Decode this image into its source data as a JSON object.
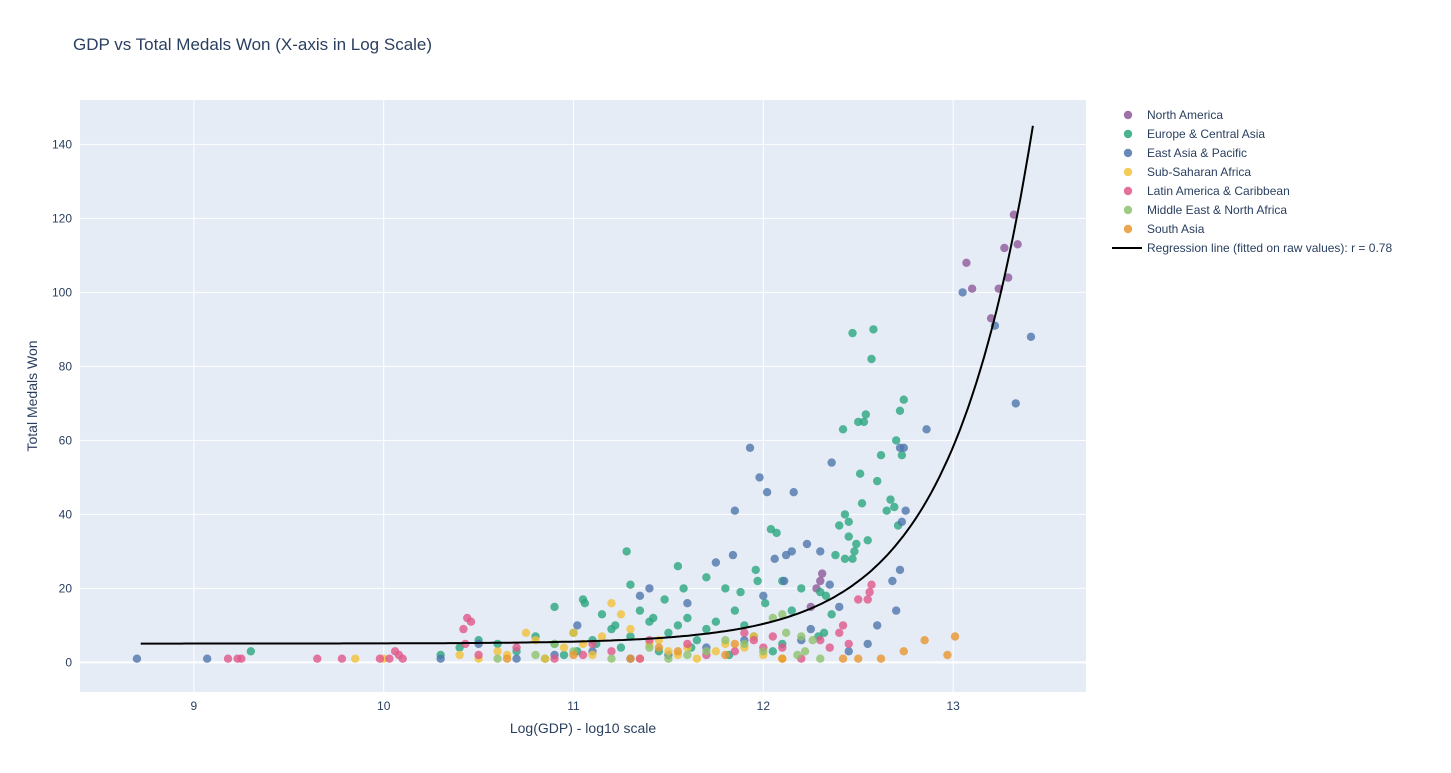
{
  "chart_data": {
    "type": "scatter",
    "title": "GDP vs Total Medals Won (X-axis in Log Scale)",
    "xlabel": "Log(GDP) - log10 scale",
    "ylabel": "Total Medals Won",
    "xlim": [
      8.4,
      13.7
    ],
    "ylim": [
      -8,
      152
    ],
    "x_ticks": [
      9,
      10,
      11,
      12,
      13
    ],
    "y_ticks": [
      0,
      20,
      40,
      60,
      80,
      100,
      120,
      140
    ],
    "grid": true,
    "plot_background": "#e5ecf6",
    "legend_position": "right",
    "series": [
      {
        "name": "North America",
        "color": "#8e5a9b",
        "points": [
          [
            13.07,
            108
          ],
          [
            13.1,
            101
          ],
          [
            13.2,
            93
          ],
          [
            13.24,
            101
          ],
          [
            13.27,
            112
          ],
          [
            13.29,
            104
          ],
          [
            13.32,
            121
          ],
          [
            13.34,
            113
          ],
          [
            12.3,
            22
          ],
          [
            12.31,
            24
          ],
          [
            12.28,
            20
          ],
          [
            12.25,
            15
          ]
        ]
      },
      {
        "name": "Europe & Central Asia",
        "color": "#2aa67e",
        "points": [
          [
            9.3,
            3
          ],
          [
            10.9,
            15
          ],
          [
            11.05,
            17
          ],
          [
            11.06,
            16
          ],
          [
            11.28,
            30
          ],
          [
            11.3,
            21
          ],
          [
            11.48,
            17
          ],
          [
            11.55,
            26
          ],
          [
            11.58,
            20
          ],
          [
            11.7,
            23
          ],
          [
            11.8,
            20
          ],
          [
            11.88,
            19
          ],
          [
            11.96,
            25
          ],
          [
            11.97,
            22
          ],
          [
            12.01,
            16
          ],
          [
            12.04,
            36
          ],
          [
            12.07,
            35
          ],
          [
            12.1,
            22
          ],
          [
            12.3,
            19
          ],
          [
            12.33,
            18
          ],
          [
            12.38,
            29
          ],
          [
            12.4,
            37
          ],
          [
            12.42,
            63
          ],
          [
            12.43,
            40
          ],
          [
            12.45,
            34
          ],
          [
            12.47,
            89
          ],
          [
            12.5,
            65
          ],
          [
            12.51,
            51
          ],
          [
            12.52,
            43
          ],
          [
            12.53,
            65
          ],
          [
            12.54,
            67
          ],
          [
            12.55,
            33
          ],
          [
            12.57,
            82
          ],
          [
            12.58,
            90
          ],
          [
            12.6,
            49
          ],
          [
            12.62,
            56
          ],
          [
            12.65,
            41
          ],
          [
            12.67,
            44
          ],
          [
            12.7,
            60
          ],
          [
            12.72,
            68
          ],
          [
            12.74,
            71
          ],
          [
            12.73,
            56
          ],
          [
            12.69,
            42
          ],
          [
            12.71,
            37
          ],
          [
            12.47,
            28
          ],
          [
            12.48,
            30
          ],
          [
            12.49,
            32
          ],
          [
            12.43,
            28
          ],
          [
            12.45,
            38
          ],
          [
            12.36,
            13
          ],
          [
            12.32,
            8
          ],
          [
            12.29,
            7
          ],
          [
            12.2,
            20
          ],
          [
            12.15,
            14
          ],
          [
            11.6,
            12
          ],
          [
            11.4,
            11
          ],
          [
            11.2,
            9
          ],
          [
            11.0,
            8
          ],
          [
            10.8,
            7
          ],
          [
            10.6,
            5
          ],
          [
            10.4,
            4
          ],
          [
            10.3,
            2
          ],
          [
            10.5,
            6
          ],
          [
            10.7,
            3
          ],
          [
            10.9,
            5
          ],
          [
            11.1,
            6
          ],
          [
            11.3,
            7
          ],
          [
            11.5,
            8
          ],
          [
            11.7,
            9
          ],
          [
            11.9,
            10
          ],
          [
            12.1,
            5
          ],
          [
            10.95,
            2
          ],
          [
            11.15,
            13
          ],
          [
            11.25,
            4
          ],
          [
            11.45,
            3
          ],
          [
            11.65,
            6
          ],
          [
            11.85,
            14
          ],
          [
            11.35,
            14
          ],
          [
            11.55,
            10
          ],
          [
            11.75,
            11
          ],
          [
            11.95,
            7
          ],
          [
            12.05,
            3
          ],
          [
            10.85,
            1
          ],
          [
            11.02,
            3
          ],
          [
            11.12,
            5
          ],
          [
            11.22,
            10
          ],
          [
            11.42,
            12
          ],
          [
            11.62,
            4
          ],
          [
            11.82,
            2
          ]
        ]
      },
      {
        "name": "East Asia & Pacific",
        "color": "#4f75ad",
        "points": [
          [
            8.7,
            1
          ],
          [
            9.07,
            1
          ],
          [
            11.02,
            10
          ],
          [
            11.35,
            18
          ],
          [
            11.4,
            20
          ],
          [
            11.6,
            16
          ],
          [
            11.75,
            27
          ],
          [
            11.84,
            29
          ],
          [
            11.85,
            41
          ],
          [
            11.93,
            58
          ],
          [
            11.98,
            50
          ],
          [
            12.02,
            46
          ],
          [
            12.06,
            28
          ],
          [
            12.12,
            29
          ],
          [
            12.15,
            30
          ],
          [
            12.16,
            46
          ],
          [
            12.23,
            32
          ],
          [
            12.3,
            30
          ],
          [
            12.35,
            21
          ],
          [
            12.36,
            54
          ],
          [
            12.4,
            15
          ],
          [
            12.6,
            10
          ],
          [
            12.68,
            22
          ],
          [
            12.7,
            14
          ],
          [
            12.72,
            58
          ],
          [
            12.74,
            58
          ],
          [
            12.75,
            41
          ],
          [
            12.72,
            25
          ],
          [
            12.73,
            38
          ],
          [
            12.86,
            63
          ],
          [
            13.05,
            100
          ],
          [
            13.22,
            91
          ],
          [
            13.33,
            70
          ],
          [
            13.41,
            88
          ],
          [
            12.11,
            22
          ],
          [
            12.0,
            18
          ],
          [
            11.9,
            6
          ],
          [
            11.7,
            4
          ],
          [
            11.5,
            2
          ],
          [
            11.3,
            1
          ],
          [
            11.1,
            3
          ],
          [
            10.9,
            2
          ],
          [
            10.7,
            1
          ],
          [
            10.5,
            5
          ],
          [
            10.3,
            1
          ],
          [
            12.2,
            6
          ],
          [
            12.45,
            3
          ],
          [
            12.55,
            5
          ],
          [
            12.25,
            9
          ]
        ]
      },
      {
        "name": "Sub-Saharan Africa",
        "color": "#f2c23a",
        "points": [
          [
            9.85,
            1
          ],
          [
            10.0,
            1
          ],
          [
            10.4,
            2
          ],
          [
            10.6,
            3
          ],
          [
            10.75,
            8
          ],
          [
            10.8,
            6
          ],
          [
            10.95,
            4
          ],
          [
            11.0,
            8
          ],
          [
            11.05,
            5
          ],
          [
            11.2,
            16
          ],
          [
            11.25,
            13
          ],
          [
            11.3,
            9
          ],
          [
            11.45,
            6
          ],
          [
            11.5,
            3
          ],
          [
            11.55,
            2
          ],
          [
            11.6,
            4
          ],
          [
            11.8,
            5
          ],
          [
            11.9,
            4
          ],
          [
            11.95,
            7
          ],
          [
            12.0,
            2
          ],
          [
            12.1,
            1
          ],
          [
            10.65,
            2
          ],
          [
            10.85,
            1
          ],
          [
            11.1,
            2
          ],
          [
            11.35,
            1
          ],
          [
            11.65,
            1
          ],
          [
            11.75,
            3
          ],
          [
            10.5,
            1
          ],
          [
            11.15,
            7
          ],
          [
            11.4,
            5
          ]
        ]
      },
      {
        "name": "Latin America & Caribbean",
        "color": "#e0578a",
        "points": [
          [
            9.18,
            1
          ],
          [
            9.23,
            1
          ],
          [
            9.25,
            1
          ],
          [
            9.65,
            1
          ],
          [
            9.78,
            1
          ],
          [
            9.98,
            1
          ],
          [
            10.03,
            1
          ],
          [
            10.06,
            3
          ],
          [
            10.08,
            2
          ],
          [
            10.1,
            1
          ],
          [
            10.42,
            9
          ],
          [
            10.44,
            12
          ],
          [
            10.46,
            11
          ],
          [
            10.43,
            5
          ],
          [
            10.5,
            2
          ],
          [
            10.7,
            4
          ],
          [
            10.9,
            1
          ],
          [
            11.05,
            2
          ],
          [
            11.2,
            3
          ],
          [
            11.35,
            1
          ],
          [
            11.6,
            5
          ],
          [
            11.85,
            3
          ],
          [
            11.9,
            8
          ],
          [
            11.95,
            6
          ],
          [
            12.05,
            7
          ],
          [
            12.1,
            4
          ],
          [
            12.4,
            8
          ],
          [
            12.42,
            10
          ],
          [
            12.5,
            17
          ],
          [
            12.55,
            17
          ],
          [
            12.56,
            19
          ],
          [
            12.57,
            21
          ],
          [
            12.45,
            5
          ],
          [
            12.35,
            4
          ],
          [
            12.3,
            6
          ],
          [
            12.2,
            1
          ],
          [
            12.0,
            4
          ],
          [
            11.7,
            2
          ],
          [
            11.4,
            6
          ],
          [
            11.1,
            5
          ]
        ]
      },
      {
        "name": "Middle East & North Africa",
        "color": "#8dc26d",
        "points": [
          [
            10.6,
            1
          ],
          [
            10.8,
            2
          ],
          [
            11.0,
            3
          ],
          [
            11.2,
            1
          ],
          [
            11.4,
            4
          ],
          [
            11.6,
            2
          ],
          [
            11.8,
            6
          ],
          [
            11.9,
            5
          ],
          [
            12.0,
            3
          ],
          [
            12.05,
            12
          ],
          [
            12.1,
            13
          ],
          [
            12.12,
            8
          ],
          [
            12.18,
            2
          ],
          [
            12.2,
            7
          ],
          [
            12.22,
            3
          ],
          [
            12.26,
            6
          ],
          [
            11.5,
            1
          ],
          [
            11.7,
            3
          ],
          [
            10.9,
            5
          ],
          [
            12.3,
            1
          ]
        ]
      },
      {
        "name": "South Asia",
        "color": "#e9962e",
        "points": [
          [
            10.65,
            1
          ],
          [
            11.0,
            2
          ],
          [
            11.3,
            1
          ],
          [
            11.55,
            3
          ],
          [
            11.8,
            2
          ],
          [
            12.1,
            1
          ],
          [
            12.42,
            1
          ],
          [
            12.5,
            1
          ],
          [
            12.62,
            1
          ],
          [
            12.74,
            3
          ],
          [
            12.85,
            6
          ],
          [
            12.97,
            2
          ],
          [
            13.01,
            7
          ],
          [
            11.85,
            5
          ],
          [
            11.45,
            4
          ]
        ]
      }
    ],
    "regression": {
      "name": "Regression line (fitted on raw values): r = 0.78",
      "color": "#000000",
      "x_range": [
        8.72,
        13.42
      ],
      "intercept": 5.09,
      "slope_per_gdp_unit": 5.32e-12
    }
  }
}
